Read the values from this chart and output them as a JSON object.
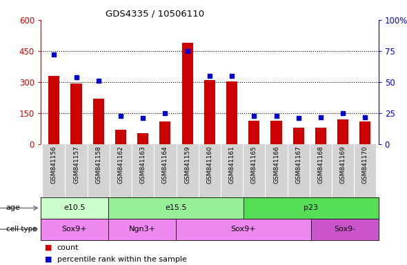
{
  "title": "GDS4335 / 10506110",
  "samples": [
    "GSM841156",
    "GSM841157",
    "GSM841158",
    "GSM841162",
    "GSM841163",
    "GSM841164",
    "GSM841159",
    "GSM841160",
    "GSM841161",
    "GSM841165",
    "GSM841166",
    "GSM841167",
    "GSM841168",
    "GSM841169",
    "GSM841170"
  ],
  "counts": [
    330,
    295,
    220,
    70,
    55,
    110,
    490,
    310,
    305,
    115,
    115,
    80,
    80,
    120,
    110
  ],
  "percentiles": [
    72,
    54,
    51,
    23,
    21,
    25,
    75,
    55,
    55,
    23,
    23,
    21,
    22,
    25,
    22
  ],
  "ylim_left": [
    0,
    600
  ],
  "ylim_right": [
    0,
    100
  ],
  "yticks_left": [
    0,
    150,
    300,
    450,
    600
  ],
  "yticks_right": [
    0,
    25,
    50,
    75,
    100
  ],
  "bar_color": "#cc0000",
  "dot_color": "#0000cc",
  "age_groups": [
    {
      "label": "e10.5",
      "start": 0,
      "end": 3,
      "color": "#ccffcc"
    },
    {
      "label": "e15.5",
      "start": 3,
      "end": 9,
      "color": "#99ee99"
    },
    {
      "label": "p23",
      "start": 9,
      "end": 15,
      "color": "#55dd55"
    }
  ],
  "cell_groups": [
    {
      "label": "Sox9+",
      "start": 0,
      "end": 3,
      "color": "#ee88ee"
    },
    {
      "label": "Ngn3+",
      "start": 3,
      "end": 6,
      "color": "#ee88ee"
    },
    {
      "label": "Sox9+",
      "start": 6,
      "end": 12,
      "color": "#ee88ee"
    },
    {
      "label": "Sox9-",
      "start": 12,
      "end": 15,
      "color": "#cc55cc"
    }
  ],
  "plot_bg": "#ffffff",
  "tick_label_bg": "#d3d3d3",
  "bar_width": 0.5,
  "dot_size": 5
}
